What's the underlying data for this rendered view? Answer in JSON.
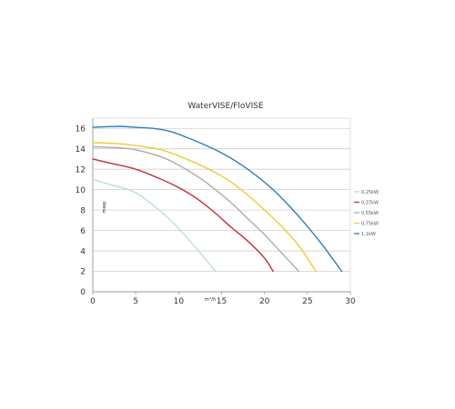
{
  "chart_data": {
    "type": "line",
    "title": "WaterVISE/FloVISE",
    "xlabel": "m³/h",
    "ylabel": "mwp",
    "xlim": [
      0,
      30
    ],
    "ylim": [
      0,
      17
    ],
    "x_ticks": [
      0,
      5,
      10,
      15,
      20,
      25,
      30
    ],
    "y_ticks": [
      0,
      2,
      4,
      6,
      8,
      10,
      12,
      14,
      16
    ],
    "grid": "horizontal",
    "legend_position": "right",
    "series": [
      {
        "name": "0,25kW",
        "color": "#b9dfd9",
        "points": [
          [
            0,
            11
          ],
          [
            2,
            10.5
          ],
          [
            5,
            9.7
          ],
          [
            8,
            7.8
          ],
          [
            10,
            6.2
          ],
          [
            12,
            4.3
          ],
          [
            14.3,
            2
          ]
        ]
      },
      {
        "name": "0,37kW",
        "color": "#cc2a36",
        "points": [
          [
            0,
            13
          ],
          [
            2,
            12.6
          ],
          [
            5,
            12
          ],
          [
            8,
            11
          ],
          [
            10,
            10.2
          ],
          [
            12,
            9.2
          ],
          [
            14,
            7.9
          ],
          [
            16,
            6.4
          ],
          [
            18,
            5
          ],
          [
            20,
            3.3
          ],
          [
            21,
            2
          ]
        ]
      },
      {
        "name": "0,55kW",
        "color": "#ababab",
        "points": [
          [
            0,
            14.2
          ],
          [
            3,
            14.1
          ],
          [
            5,
            13.9
          ],
          [
            8,
            13.2
          ],
          [
            10,
            12.4
          ],
          [
            12,
            11.4
          ],
          [
            14,
            10.2
          ],
          [
            16,
            8.8
          ],
          [
            18,
            7.2
          ],
          [
            20,
            5.6
          ],
          [
            22,
            3.8
          ],
          [
            24,
            2
          ]
        ]
      },
      {
        "name": "0,75kW",
        "color": "#f2cb2c",
        "points": [
          [
            0,
            14.6
          ],
          [
            3,
            14.5
          ],
          [
            6,
            14.2
          ],
          [
            8,
            13.9
          ],
          [
            10,
            13.3
          ],
          [
            12,
            12.6
          ],
          [
            14,
            11.8
          ],
          [
            16,
            10.8
          ],
          [
            18,
            9.5
          ],
          [
            20,
            8
          ],
          [
            22,
            6.4
          ],
          [
            24,
            4.5
          ],
          [
            26,
            2
          ]
        ]
      },
      {
        "name": "1,1kW",
        "color": "#2b7fbf",
        "points": [
          [
            0,
            16.1
          ],
          [
            3,
            16.2
          ],
          [
            5,
            16.1
          ],
          [
            7,
            16
          ],
          [
            9,
            15.7
          ],
          [
            11,
            15.1
          ],
          [
            13,
            14.4
          ],
          [
            15,
            13.6
          ],
          [
            17,
            12.6
          ],
          [
            19,
            11.4
          ],
          [
            21,
            10
          ],
          [
            23,
            8.3
          ],
          [
            25,
            6.4
          ],
          [
            27,
            4.3
          ],
          [
            29,
            2
          ]
        ]
      }
    ]
  }
}
